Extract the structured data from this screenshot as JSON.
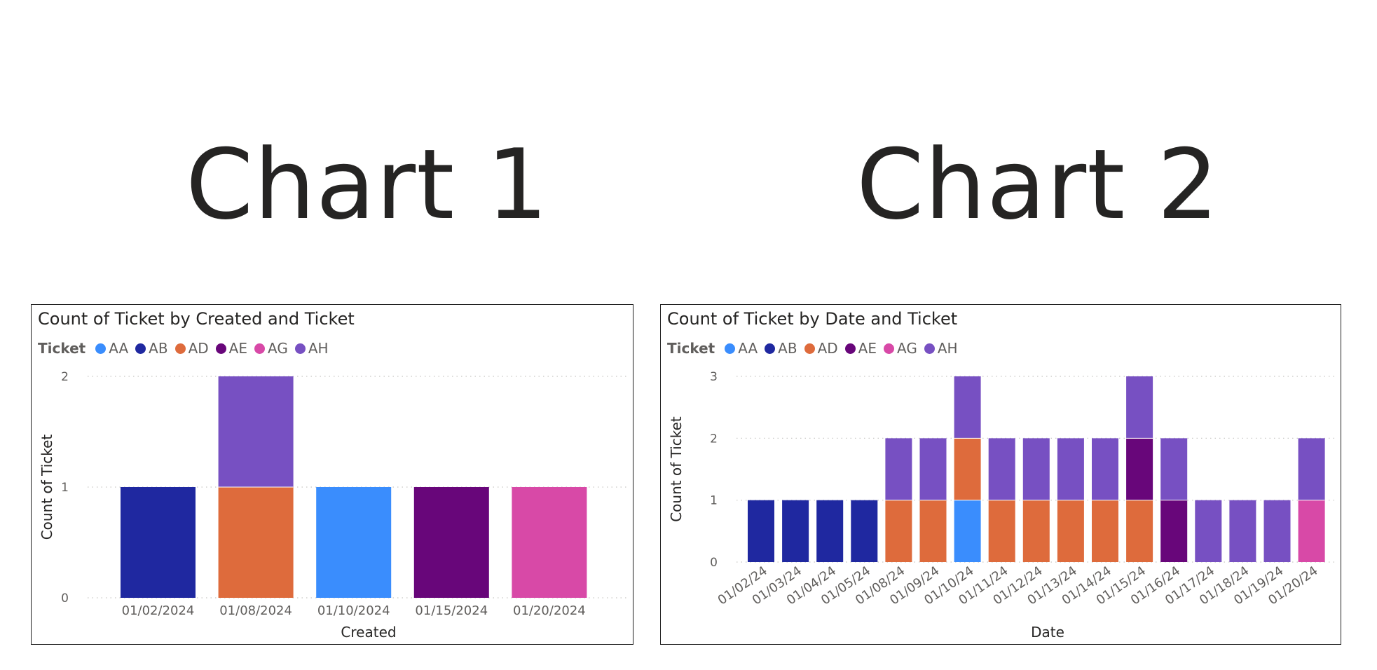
{
  "headings": {
    "chart1": "Chart 1",
    "chart2": "Chart 2"
  },
  "colors": {
    "AA": "#3a8dfd",
    "AB": "#1f28a0",
    "AD": "#de6b3c",
    "AE": "#68067a",
    "AG": "#d849a7",
    "AH": "#7750c2"
  },
  "chart_data": [
    {
      "type": "bar",
      "stacked": true,
      "title": "Count of Ticket by Created and Ticket",
      "legend_title": "Ticket",
      "legend": [
        "AA",
        "AB",
        "AD",
        "AE",
        "AG",
        "AH"
      ],
      "legend_placement": "top-left",
      "xlabel": "Created",
      "ylabel": "Count of Ticket",
      "ylim": [
        0,
        2
      ],
      "yticks": [
        0,
        1,
        2
      ],
      "grid": true,
      "categories": [
        "01/02/2024",
        "01/08/2024",
        "01/10/2024",
        "01/15/2024",
        "01/20/2024"
      ],
      "series": [
        {
          "name": "AA",
          "values": [
            0,
            0,
            1,
            0,
            0
          ]
        },
        {
          "name": "AB",
          "values": [
            1,
            0,
            0,
            0,
            0
          ]
        },
        {
          "name": "AD",
          "values": [
            0,
            1,
            0,
            0,
            0
          ]
        },
        {
          "name": "AE",
          "values": [
            0,
            0,
            0,
            1,
            0
          ]
        },
        {
          "name": "AG",
          "values": [
            0,
            0,
            0,
            0,
            1
          ]
        },
        {
          "name": "AH",
          "values": [
            0,
            1,
            0,
            0,
            0
          ]
        }
      ]
    },
    {
      "type": "bar",
      "stacked": true,
      "title": "Count of Ticket by Date and Ticket",
      "legend_title": "Ticket",
      "legend": [
        "AA",
        "AB",
        "AD",
        "AE",
        "AG",
        "AH"
      ],
      "legend_placement": "top-left",
      "xlabel": "Date",
      "ylabel": "Count of Ticket",
      "ylim": [
        0,
        3
      ],
      "yticks": [
        0,
        1,
        2,
        3
      ],
      "grid": true,
      "categories": [
        "01/02/24",
        "01/03/24",
        "01/04/24",
        "01/05/24",
        "01/08/24",
        "01/09/24",
        "01/10/24",
        "01/11/24",
        "01/12/24",
        "01/13/24",
        "01/14/24",
        "01/15/24",
        "01/16/24",
        "01/17/24",
        "01/18/24",
        "01/19/24",
        "01/20/24"
      ],
      "series": [
        {
          "name": "AA",
          "values": [
            0,
            0,
            0,
            0,
            0,
            0,
            1,
            0,
            0,
            0,
            0,
            0,
            0,
            0,
            0,
            0,
            0
          ]
        },
        {
          "name": "AB",
          "values": [
            1,
            1,
            1,
            1,
            0,
            0,
            0,
            0,
            0,
            0,
            0,
            0,
            0,
            0,
            0,
            0,
            0
          ]
        },
        {
          "name": "AD",
          "values": [
            0,
            0,
            0,
            0,
            1,
            1,
            1,
            1,
            1,
            1,
            1,
            1,
            0,
            0,
            0,
            0,
            0
          ]
        },
        {
          "name": "AE",
          "values": [
            0,
            0,
            0,
            0,
            0,
            0,
            0,
            0,
            0,
            0,
            0,
            1,
            1,
            0,
            0,
            0,
            0
          ]
        },
        {
          "name": "AG",
          "values": [
            0,
            0,
            0,
            0,
            0,
            0,
            0,
            0,
            0,
            0,
            0,
            0,
            0,
            0,
            0,
            0,
            1
          ]
        },
        {
          "name": "AH",
          "values": [
            0,
            0,
            0,
            0,
            1,
            1,
            1,
            1,
            1,
            1,
            1,
            1,
            1,
            1,
            1,
            1,
            1
          ]
        }
      ]
    }
  ]
}
